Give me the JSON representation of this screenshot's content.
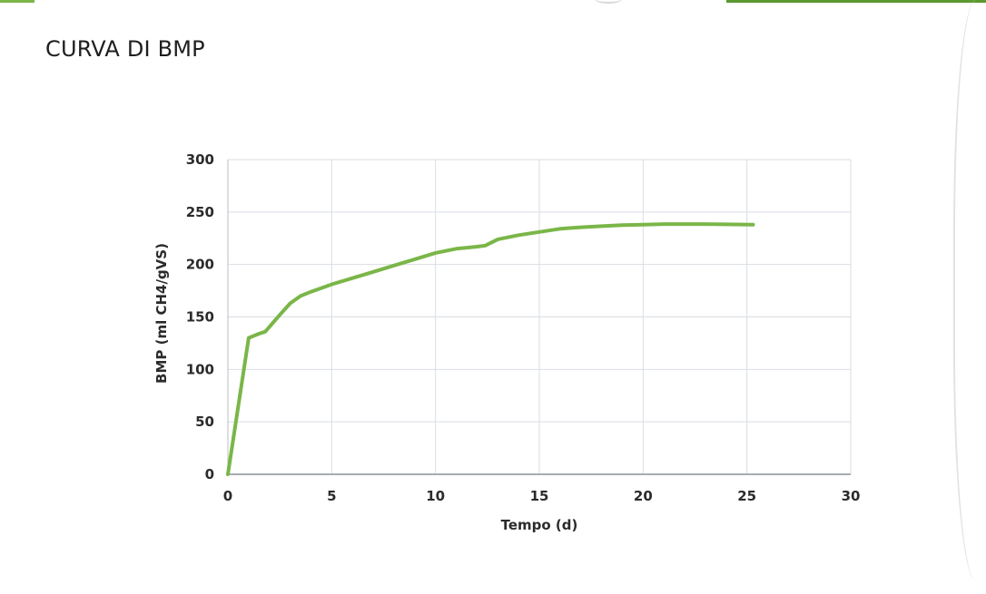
{
  "page": {
    "title": "CURVA DI BMP"
  },
  "colors": {
    "line": "#7ab648",
    "grid": "#d9dee3",
    "accent_bar": "#6aa83a"
  },
  "chart_data": {
    "type": "line",
    "title": "",
    "xlabel": "Tempo (d)",
    "ylabel": "BMP (ml CH4/gVS)",
    "xlim": [
      0,
      30
    ],
    "ylim": [
      0,
      300
    ],
    "xticks": [
      "0",
      "5",
      "10",
      "15",
      "20",
      "25",
      "30"
    ],
    "yticks": [
      "0",
      "50",
      "100",
      "150",
      "200",
      "250",
      "300"
    ],
    "grid": true,
    "legend": "none",
    "series": [
      {
        "x": [
          0,
          1,
          1.5,
          1.8,
          2.5,
          3,
          3.5,
          4,
          5,
          6,
          7,
          8,
          9,
          10,
          11,
          12,
          12.4,
          13,
          14,
          15,
          16,
          17,
          18,
          19,
          20,
          21,
          22,
          23,
          24,
          25.3
        ],
        "y": [
          0,
          130,
          134,
          136,
          152,
          163,
          170,
          174,
          181,
          187,
          193,
          199,
          205,
          211,
          215,
          217,
          218,
          224,
          228,
          231,
          234,
          235.5,
          236.5,
          237.5,
          238,
          238.5,
          238.5,
          238.5,
          238.3,
          238
        ]
      }
    ]
  }
}
